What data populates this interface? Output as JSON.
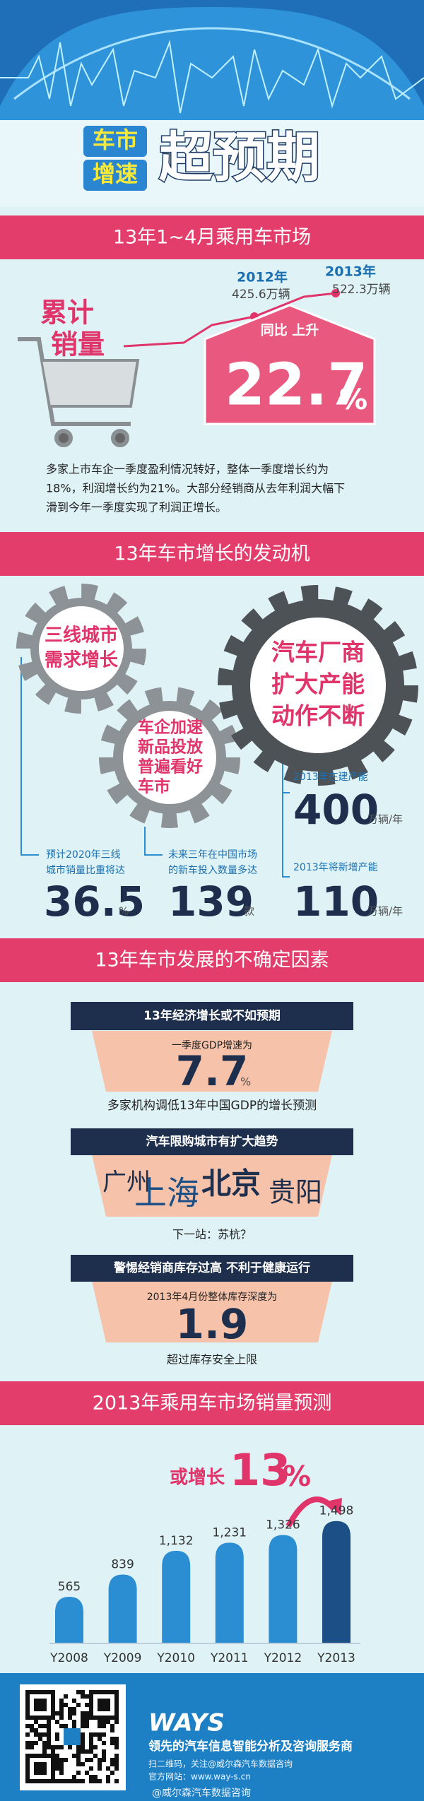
{
  "header": {
    "title_small": [
      "车市",
      "增速"
    ],
    "title_main": "超预期"
  },
  "market": {
    "heading": "13年1~4月乘用车市场",
    "label": [
      "累计",
      "销量"
    ],
    "year_2012": "2012年",
    "sales_2012": "425.6万辆",
    "year_2013": "2013年",
    "sales_2013": "522.3万辆",
    "yoy_label": "同比 上升",
    "yoy_value": 22.7,
    "yoy_unit": "%",
    "paragraph": [
      "多家上市车企一季度盈利情况转好，整体一季度增长约为",
      "18%，利润增长约为21%。大部分经销商从去年利润大幅下",
      "滑到今年一季度实现了利润正增长。"
    ]
  },
  "engine": {
    "heading": "13年车市增长的发动机",
    "gears": [
      [
        "三线城市",
        "需求增长"
      ],
      [
        "车企加速",
        "新品投放",
        "普遍看好",
        "车市"
      ],
      [
        "汽车厂商",
        "扩大产能",
        "动作不断"
      ]
    ],
    "stats": [
      {
        "lines": [
          "预计2020年三线",
          "城市销量比重将达"
        ],
        "value": 36.5,
        "unit": "%"
      },
      {
        "lines": [
          "未来三年在中国市场",
          "的新车投入数量多达"
        ],
        "value": 139,
        "unit": "款"
      },
      {
        "lines": [
          "2013年在建产能"
        ],
        "value": 400,
        "unit": "万辆/年"
      },
      {
        "lines": [
          "2013年将新增产能"
        ],
        "value": 110,
        "unit": "万辆/年"
      }
    ]
  },
  "uncertainty": {
    "heading": "13年车市发展的不确定因素",
    "gdp": {
      "title": "13年经济增长或不如预期",
      "caption": "一季度GDP增速为",
      "value": 7.7,
      "unit": "%",
      "note": "多家机构调低13年中国GDP的增长预测"
    },
    "limits": {
      "title": "汽车限购城市有扩大趋势",
      "cities": [
        "广州",
        "上海",
        "北京",
        "贵阳"
      ],
      "note": "下一站：苏杭？"
    },
    "stock": {
      "title": "警惕经销商库存过高  不利于健康运行",
      "caption": "2013年4月份整体库存深度为",
      "value": 1.9,
      "note": "超过库存安全上限"
    }
  },
  "forecast": {
    "heading": "2013年乘用车市场销量预测",
    "growth_label": "或增长",
    "growth_value": 13,
    "growth_unit": "%"
  },
  "chart_data": {
    "type": "bar",
    "categories": [
      "Y2008",
      "Y2009",
      "Y2010",
      "Y2011",
      "Y2012",
      "Y2013"
    ],
    "values": [
      565,
      839,
      1132,
      1231,
      1326,
      1498
    ],
    "value_labels": [
      "565",
      "839",
      "1,132",
      "1,231",
      "1,326",
      "1,498"
    ],
    "colors": [
      "#2b8ed3",
      "#2b8ed3",
      "#2b8ed3",
      "#2b8ed3",
      "#2b8ed3",
      "#1b4f86"
    ]
  },
  "footer": {
    "brand": "WAYS",
    "slogan": "领先的汽车信息智能分析及咨询服务商",
    "qr_note": "扫二维码，关注@威尔森汽车数据咨询",
    "website": "官方网站：www.way-s.cn",
    "weibo": "@威尔森汽车数据咨询"
  }
}
